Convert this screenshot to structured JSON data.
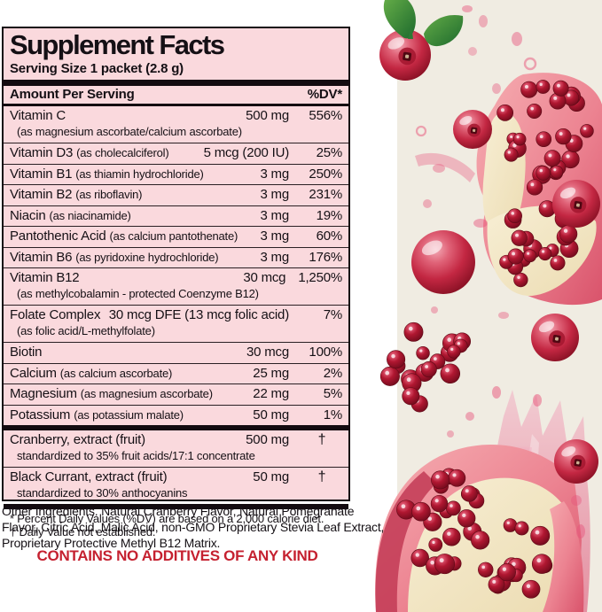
{
  "panel": {
    "title": "Supplement Facts",
    "serving_size": "Serving Size 1 packet (2.8 g)",
    "header": {
      "amount_label": "Amount Per Serving",
      "dv_label": "%DV*"
    },
    "rows": [
      {
        "name": "Vitamin C",
        "detail": "",
        "amount": "500 mg",
        "dv": "556%",
        "sub": "(as magnesium ascorbate/calcium ascorbate)"
      },
      {
        "name": "Vitamin D3",
        "detail": "(as cholecalciferol)",
        "amount": "5 mcg (200 IU)",
        "dv": "25%"
      },
      {
        "name": "Vitamin B1",
        "detail": "(as thiamin hydrochloride)",
        "amount": "3 mg",
        "dv": "250%"
      },
      {
        "name": "Vitamin B2",
        "detail": "(as riboflavin)",
        "amount": "3 mg",
        "dv": "231%"
      },
      {
        "name": "Niacin",
        "detail": "(as niacinamide)",
        "amount": "3 mg",
        "dv": "19%"
      },
      {
        "name": "Pantothenic Acid",
        "detail": "(as calcium pantothenate)",
        "amount": "3 mg",
        "dv": "60%"
      },
      {
        "name": "Vitamin B6",
        "detail": "(as pyridoxine hydrochloride)",
        "amount": "3 mg",
        "dv": "176%"
      },
      {
        "name": "Vitamin B12",
        "detail": "",
        "amount": "30 mcg",
        "dv": "1,250%",
        "sub": "(as methylcobalamin - protected Coenzyme B12)"
      },
      {
        "name": "Folate Complex",
        "detail": "",
        "amount": "30 mcg DFE (13 mcg folic acid)",
        "dv": "7%",
        "sub": "(as folic acid/L-methylfolate)"
      },
      {
        "name": "Biotin",
        "detail": "",
        "amount": "30 mcg",
        "dv": "100%"
      },
      {
        "name": "Calcium",
        "detail": "(as calcium ascorbate)",
        "amount": "25 mg",
        "dv": "2%"
      },
      {
        "name": "Magnesium",
        "detail": "(as magnesium ascorbate)",
        "amount": "22 mg",
        "dv": "5%"
      },
      {
        "name": "Potassium",
        "detail": "(as potassium malate)",
        "amount": "50 mg",
        "dv": "1%"
      },
      {
        "name": "Cranberry, extract (fruit)",
        "detail": "",
        "amount": "500 mg",
        "dv": "†",
        "sub": "standardized to 35% fruit acids/17:1 concentrate",
        "sep": "thick"
      },
      {
        "name": "Black Currant, extract (fruit)",
        "detail": "",
        "amount": "50 mg",
        "dv": "†",
        "sub": "standardized to 30% anthocyanins"
      }
    ],
    "footnotes": [
      "* Percent Daily Values (%DV) are based on a 2,000 calorie diet.",
      "† Daily Value not established."
    ]
  },
  "other_ingredients": "Other Ingredients. Natural Cranberry Flavor, Natural Pomegranate Flavor, Citric Acid, Malic Acid, non-GMO Proprietary Stevia Leaf Extract, Proprietary Protective Methyl B12 Matrix.",
  "claim": "CONTAINS NO ADDITIVES OF ANY KIND",
  "colors": {
    "panel_background": "#fad9dd",
    "rule_black": "#130b10",
    "claim_red": "#c52130",
    "artwork_background": "#f0ece2"
  },
  "artwork": {
    "items": [
      "cranberry",
      "cranberry-leaves",
      "pomegranate-wedge",
      "pomegranate-seeds",
      "juice-splash"
    ]
  }
}
